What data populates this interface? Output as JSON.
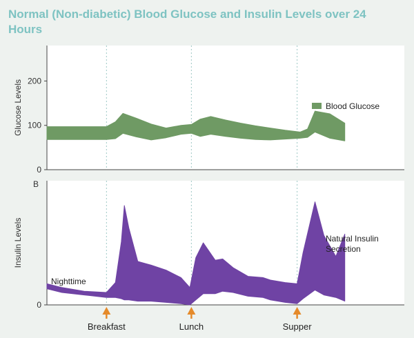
{
  "title": "Normal (Non-diabetic) Blood Glucose and Insulin Levels over 24 Hours",
  "colors": {
    "glucose": "#6f9a64",
    "insulin": "#6f43a4",
    "arrow": "#e58a2a",
    "title": "#7ec3c2",
    "meal_line": "#9cc6c4"
  },
  "chart_data": [
    {
      "type": "area",
      "ylabel": "Glucose Levels",
      "yticks": [
        0,
        100,
        200
      ],
      "ylim": [
        0,
        280
      ],
      "xlim": [
        0,
        24
      ],
      "series": [
        {
          "name": "Blood Glucose",
          "x": [
            0,
            4.0,
            4.6,
            5.1,
            6.0,
            7.0,
            8.0,
            9.0,
            9.7,
            10.3,
            11.0,
            12.0,
            13.0,
            14.0,
            15.0,
            16.0,
            17.0,
            17.5,
            18.0,
            19.0,
            20.0
          ],
          "upper": [
            97,
            97,
            108,
            127,
            116,
            103,
            94,
            100,
            102,
            114,
            120,
            112,
            105,
            99,
            94,
            89,
            85,
            92,
            132,
            126,
            105
          ],
          "lower": [
            68,
            68,
            70,
            82,
            74,
            67,
            72,
            80,
            82,
            75,
            80,
            75,
            71,
            68,
            67,
            69,
            71,
            73,
            85,
            71,
            65
          ]
        }
      ]
    },
    {
      "type": "area",
      "ylabel": "Insulin Levels",
      "yticks": [
        0
      ],
      "ylim": [
        0,
        100
      ],
      "xlim": [
        0,
        24
      ],
      "series": [
        {
          "name": "Natural Insulin Secretion",
          "x": [
            0,
            1.0,
            2.5,
            4.0,
            4.6,
            5.0,
            5.2,
            5.5,
            6.1,
            7.0,
            8.0,
            9.0,
            9.6,
            10.0,
            10.5,
            11.3,
            11.8,
            12.5,
            13.5,
            14.5,
            15.0,
            16.0,
            16.8,
            17.2,
            18.0,
            18.6,
            19.4,
            20.0
          ],
          "upper": [
            17,
            14,
            11,
            10,
            18,
            51,
            80,
            62,
            35,
            32,
            28,
            22,
            14,
            38,
            50,
            36,
            37,
            30,
            23,
            22,
            20,
            18,
            17,
            42,
            83,
            56,
            39,
            57
          ],
          "lower": [
            13,
            10,
            8,
            6,
            6,
            5,
            4,
            4,
            3,
            3,
            2,
            1,
            0,
            4,
            9,
            9,
            11,
            10,
            7,
            6,
            4,
            2,
            1,
            5,
            12,
            8,
            6,
            3
          ]
        }
      ],
      "annotation": "Nighttime"
    }
  ],
  "meals": [
    {
      "label": "Breakfast",
      "x": 4.0
    },
    {
      "label": "Lunch",
      "x": 9.7
    },
    {
      "label": "Supper",
      "x": 16.8
    }
  ],
  "axis_letter": "B"
}
